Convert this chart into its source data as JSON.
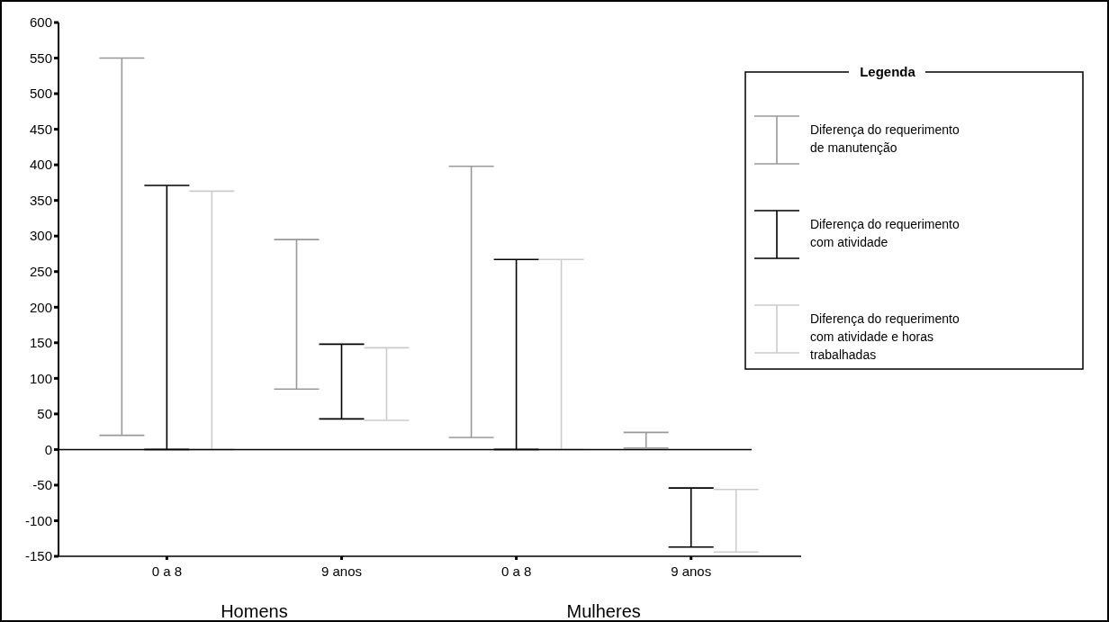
{
  "chart_data": {
    "type": "bar",
    "categories": [
      "0 a 8",
      "9 anos",
      "0 a 8",
      "9 anos"
    ],
    "series": [
      {
        "name": "Diferença do requerimento de manutenção",
        "color": "#999999",
        "values": [
          530,
          210,
          381,
          22
        ],
        "base": [
          20,
          85,
          17,
          2
        ]
      },
      {
        "name": "Diferença do requerimento com atividade",
        "color": "#000000",
        "values": [
          371,
          105,
          267,
          83
        ],
        "base": [
          0,
          43,
          0,
          -137
        ]
      },
      {
        "name": "Diferença do requerimento com atividade e horas trabalhadas",
        "color": "#cccccc",
        "values": [
          363,
          102,
          267,
          88
        ],
        "base": [
          0,
          41,
          0,
          -144
        ]
      }
    ],
    "ylim": [
      -150,
      600
    ],
    "yticks": [
      -150,
      -100,
      -50,
      0,
      50,
      100,
      150,
      200,
      250,
      300,
      350,
      400,
      450,
      500,
      550,
      600
    ],
    "legend": "top right",
    "legend_title": "Legenda",
    "annotations": [
      "Homens",
      "Mulheres"
    ]
  }
}
